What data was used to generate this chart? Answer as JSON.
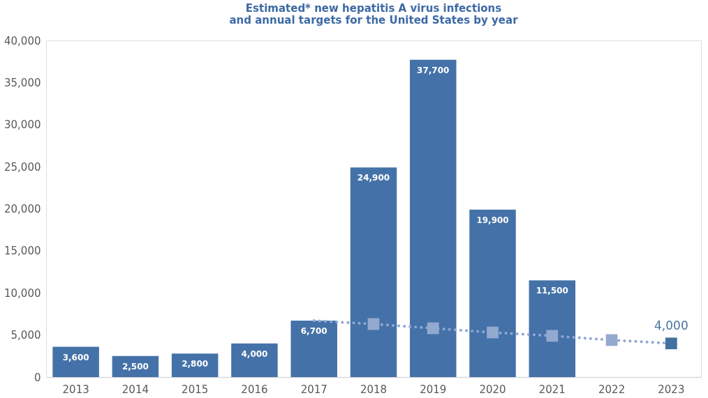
{
  "chart_data": {
    "type": "bar",
    "title": "Estimated* new hepatitis A virus infections\nand annual targets for the United States by year",
    "categories": [
      "2013",
      "2014",
      "2015",
      "2016",
      "2017",
      "2018",
      "2019",
      "2020",
      "2021",
      "2022",
      "2023"
    ],
    "ylim": [
      0,
      40000
    ],
    "yticks": [
      0,
      {
        "value": 5000,
        "label": "5,000"
      },
      {
        "value": 10000,
        "label": "10,000"
      },
      {
        "value": 15000,
        "label": "15,000"
      },
      {
        "value": 20000,
        "label": "20,000"
      },
      {
        "value": 25000,
        "label": "25,000"
      },
      {
        "value": 30000,
        "label": "30,000"
      },
      {
        "value": 35000,
        "label": "35,000"
      },
      {
        "value": 40000,
        "label": "40,000"
      }
    ],
    "grid": false,
    "series": [
      {
        "color": "#4472a8",
        "values": [
          3600,
          2500,
          2800,
          4000,
          6700,
          24900,
          37700,
          19900,
          11500,
          null,
          null
        ],
        "value_labels": [
          "3,600",
          "2,500",
          "2,800",
          "4,000",
          "6,700",
          "24,900",
          "37,700",
          "19,900",
          "11,500",
          null,
          null
        ]
      },
      {
        "type": "line",
        "color": "#8fa8d3",
        "line_style": "dotted",
        "marker": "square",
        "values": [
          null,
          null,
          null,
          null,
          6700,
          6300,
          5800,
          5300,
          4900,
          4400,
          4000
        ],
        "colors": [
          null,
          null,
          null,
          null,
          null,
          "#94a9d0",
          "#94a9d0",
          "#94a9d0",
          "#94a9d0",
          "#94a9d0",
          "#44729f"
        ],
        "value_labels": [
          null,
          null,
          null,
          null,
          null,
          null,
          null,
          null,
          null,
          null,
          "4,000"
        ]
      }
    ]
  }
}
